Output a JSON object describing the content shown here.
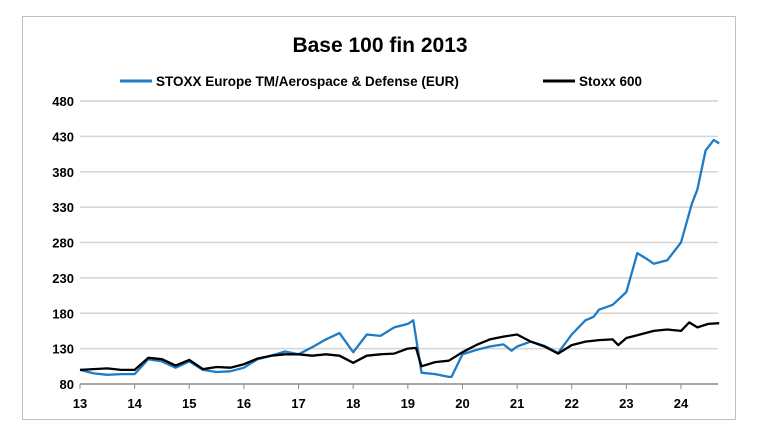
{
  "chart_data": {
    "type": "line",
    "title": "Base 100 fin 2013",
    "xlabel": "",
    "ylabel": "",
    "xlim": [
      13,
      24.7
    ],
    "ylim": [
      80,
      480
    ],
    "x_ticks": [
      "13",
      "14",
      "15",
      "16",
      "17",
      "18",
      "19",
      "20",
      "21",
      "22",
      "23",
      "24"
    ],
    "y_ticks": [
      "80",
      "130",
      "180",
      "230",
      "280",
      "330",
      "380",
      "430",
      "480"
    ],
    "grid": "horizontal",
    "legend": "top",
    "series": [
      {
        "name": "STOXX Europe TM/Aerospace & Defense (EUR)",
        "color": "#1f7bc4",
        "x": [
          13,
          13.25,
          13.5,
          13.75,
          14,
          14.25,
          14.5,
          14.75,
          15,
          15.25,
          15.5,
          15.75,
          16,
          16.25,
          16.5,
          16.75,
          17,
          17.25,
          17.5,
          17.75,
          18,
          18.25,
          18.5,
          18.75,
          19,
          19.1,
          19.25,
          19.5,
          19.75,
          19.8,
          20,
          20.25,
          20.5,
          20.75,
          20.9,
          21,
          21.25,
          21.5,
          21.75,
          22,
          22.25,
          22.4,
          22.5,
          22.75,
          23,
          23.2,
          23.35,
          23.5,
          23.75,
          24,
          24.2,
          24.3,
          24.45,
          24.6,
          24.7
        ],
        "y": [
          100,
          95,
          93,
          94,
          94,
          115,
          112,
          103,
          112,
          100,
          97,
          98,
          103,
          115,
          120,
          126,
          122,
          132,
          143,
          152,
          125,
          150,
          148,
          160,
          165,
          170,
          96,
          94,
          90,
          90,
          122,
          128,
          133,
          136,
          127,
          133,
          140,
          134,
          124,
          150,
          170,
          175,
          185,
          192,
          210,
          265,
          258,
          250,
          255,
          280,
          335,
          355,
          410,
          425,
          420
        ]
      },
      {
        "name": "Stoxx 600",
        "color": "#000000",
        "x": [
          13,
          13.25,
          13.5,
          13.75,
          14,
          14.25,
          14.5,
          14.75,
          15,
          15.25,
          15.5,
          15.75,
          16,
          16.25,
          16.5,
          16.75,
          17,
          17.25,
          17.5,
          17.75,
          18,
          18.25,
          18.5,
          18.75,
          19,
          19.15,
          19.25,
          19.5,
          19.75,
          20,
          20.25,
          20.5,
          20.75,
          21,
          21.25,
          21.5,
          21.75,
          22,
          22.25,
          22.5,
          22.75,
          22.85,
          23,
          23.25,
          23.5,
          23.75,
          24,
          24.15,
          24.3,
          24.5,
          24.7
        ],
        "y": [
          100,
          101,
          102,
          100,
          100,
          117,
          115,
          106,
          114,
          101,
          104,
          103,
          108,
          116,
          120,
          122,
          122,
          120,
          122,
          120,
          110,
          120,
          122,
          123,
          130,
          131,
          105,
          111,
          113,
          125,
          135,
          143,
          147,
          150,
          140,
          133,
          123,
          135,
          140,
          142,
          143,
          135,
          145,
          150,
          155,
          157,
          155,
          167,
          160,
          165,
          166
        ]
      }
    ]
  }
}
